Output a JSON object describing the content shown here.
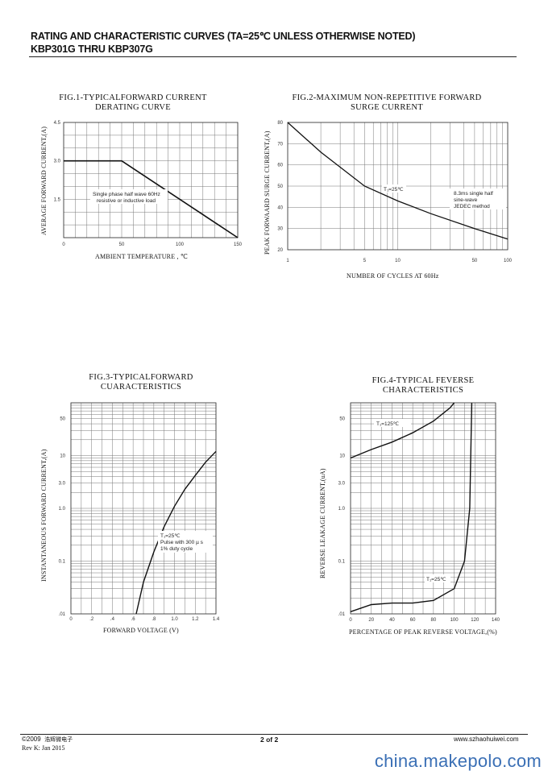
{
  "header": {
    "title": "RATING AND CHARACTERISTIC CURVES (TA=25℃ UNLESS OTHERWISE NOTED)",
    "subtitle": "KBP301G THRU KBP307G"
  },
  "figures": {
    "fig1": {
      "title_line1": "FIG.1-TYPICALFORWARD CURRENT",
      "title_line2": "DERATING CURVE",
      "ylabel": "AVERAGE FORWARD CURRENT,(A)",
      "xlabel": "AMBIENT TEMPERATURE , ℃",
      "note_line1": "Single phase half wave 60Hz",
      "note_line2": "resistive or inductive load",
      "xticks": [
        "0",
        "50",
        "100",
        "150"
      ],
      "yticks": [
        "4.5",
        "3.0",
        "1.5"
      ]
    },
    "fig2": {
      "title_line1": "FIG.2-MAXIMUM NON-REPETITIVE FORWARD",
      "title_line2": "SURGE CURRENT",
      "ylabel": "PEAK FORWAARD SURGE CURRENT,(A)",
      "xlabel": "NUMBER OF CYCLES AT 60Hz",
      "temp_label": "T₁=25℃",
      "note_line1": "8.3ms single half",
      "note_line2": "sine-wave",
      "note_line3": "JEDEC method",
      "xticks": [
        "1",
        "5",
        "10",
        "50",
        "100"
      ],
      "yticks": [
        "80",
        "70",
        "60",
        "50",
        "40",
        "30",
        "20"
      ]
    },
    "fig3": {
      "title_line1": "FIG.3-TYPICALFORWARD",
      "title_line2": "CUARACTERISTICS",
      "ylabel": "INSTANTANEOUS FORWARD CURRENT,(A)",
      "xlabel": "FORWARD VOLTAGE (V)",
      "note_line1": "T₁=25℃",
      "note_line2": "Pulse with 300 µ s",
      "note_line3": "1% duty cycle",
      "xticks": [
        "0",
        ".2",
        ".4",
        ".6",
        ".8",
        "1.0",
        "1.2",
        "1.4"
      ],
      "yticks": [
        "50",
        "10",
        "3.0",
        "1.0",
        "0.1",
        ".01"
      ]
    },
    "fig4": {
      "title_line1": "FIG.4-TYPICAL FEVERSE",
      "title_line2": "CHARACTERISTICS",
      "ylabel": "REVERSE LEAKAGE CURRENT,(uA)",
      "xlabel": "PERCENTAGE OF PEAK REVERSE VOLTAGE,(%)",
      "temp_high": "T₁=125℃",
      "temp_low": "T₁=25℃",
      "xticks": [
        "0",
        "20",
        "40",
        "60",
        "80",
        "100",
        "120",
        "140"
      ],
      "yticks": [
        "50",
        "10",
        "3.0",
        "1.0",
        "0.1",
        ".01"
      ]
    }
  },
  "chart_data": [
    {
      "type": "line",
      "title": "FIG.1-TYPICALFORWARD CURRENT DERATING CURVE",
      "xlabel": "AMBIENT TEMPERATURE , ℃",
      "ylabel": "AVERAGE FORWARD CURRENT,(A)",
      "xlim": [
        0,
        150
      ],
      "ylim": [
        0,
        4.5
      ],
      "series": [
        {
          "x": [
            0,
            50,
            150
          ],
          "y": [
            3.0,
            3.0,
            0
          ]
        }
      ]
    },
    {
      "type": "line",
      "title": "FIG.2-MAXIMUM NON-REPETITIVE FORWARD SURGE CURRENT",
      "xlabel": "NUMBER OF CYCLES AT 60Hz",
      "ylabel": "PEAK FORWAARD SURGE CURRENT,(A)",
      "xscale": "log",
      "xlim": [
        1,
        100
      ],
      "ylim": [
        20,
        80
      ],
      "series": [
        {
          "x": [
            1,
            2,
            5,
            10,
            20,
            50,
            100
          ],
          "y": [
            80,
            66,
            50,
            43,
            37,
            30,
            25
          ]
        }
      ]
    },
    {
      "type": "line",
      "title": "FIG.3-TYPICALFORWARD CUARACTERISTICS",
      "xlabel": "FORWARD VOLTAGE (V)",
      "ylabel": "INSTANTANEOUS FORWARD CURRENT,(A)",
      "yscale": "log",
      "xlim": [
        0,
        1.4
      ],
      "ylim": [
        0.01,
        100
      ],
      "series": [
        {
          "x": [
            0.63,
            0.7,
            0.8,
            0.9,
            1.0,
            1.1,
            1.2,
            1.3,
            1.4
          ],
          "y": [
            0.01,
            0.04,
            0.15,
            0.45,
            1.1,
            2.3,
            4.2,
            7.5,
            12
          ]
        }
      ]
    },
    {
      "type": "line",
      "title": "FIG.4-TYPICAL FEVERSE CHARACTERISTICS",
      "xlabel": "PERCENTAGE OF PEAK REVERSE VOLTAGE,(%)",
      "ylabel": "REVERSE LEAKAGE CURRENT,(uA)",
      "yscale": "log",
      "xlim": [
        0,
        140
      ],
      "ylim": [
        0.01,
        100
      ],
      "series": [
        {
          "name": "T₁=125℃",
          "x": [
            0,
            20,
            40,
            60,
            80,
            96,
            100
          ],
          "y": [
            9,
            13,
            18,
            27,
            45,
            80,
            100
          ]
        },
        {
          "name": "T₁=25℃",
          "x": [
            0,
            20,
            40,
            60,
            80,
            100,
            110,
            115,
            117
          ],
          "y": [
            0.011,
            0.015,
            0.016,
            0.016,
            0.018,
            0.03,
            0.1,
            1.0,
            100
          ]
        }
      ]
    }
  ],
  "footer": {
    "copyright": "©2009",
    "company": "浩辉微电子",
    "rev": "Rev K:  Jan  2015",
    "page": "2 of  2",
    "website": "www.szhaohuiwei.com"
  },
  "watermark": "china.makepolo.com"
}
